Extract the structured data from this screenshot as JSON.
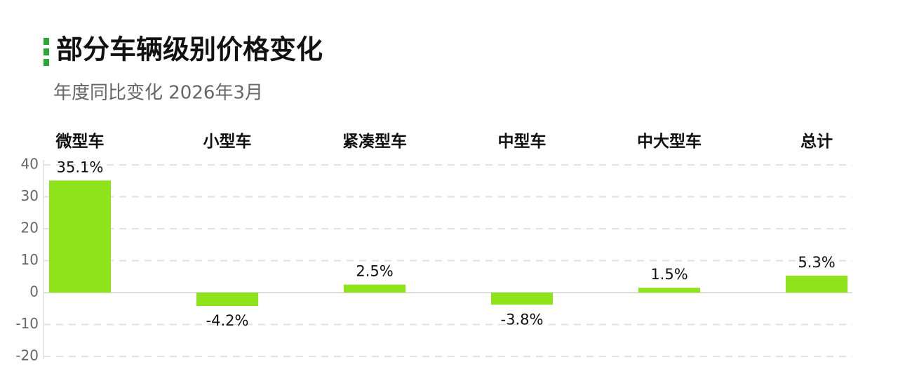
{
  "chart_data": {
    "type": "bar",
    "title": "部分车辆级别价格变化",
    "subtitle": "年度同比变化 2026年3月",
    "categories": [
      "微型车",
      "小型车",
      "紧凑型车",
      "中型车",
      "中大型车",
      "总计"
    ],
    "values": [
      35.1,
      -4.2,
      2.5,
      -3.8,
      1.5,
      5.3
    ],
    "value_labels": [
      "35.1%",
      "-4.2%",
      "2.5%",
      "-3.8%",
      "1.5%",
      "5.3%"
    ],
    "color": "#8ee31a",
    "ylim": [
      -20,
      40
    ],
    "yticks": [
      -20,
      -10,
      0,
      10,
      20,
      30,
      40
    ],
    "grid": true
  }
}
